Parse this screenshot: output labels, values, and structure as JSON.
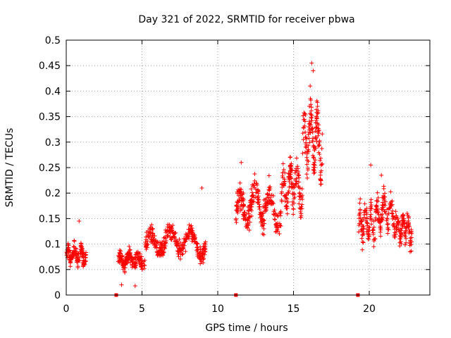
{
  "chart_data": {
    "type": "scatter",
    "title": "Day 321 of 2022, SRMTID for receiver pbwa",
    "xlabel": "GPS time / hours",
    "ylabel": "SRMTID / TECUs",
    "xlim": [
      0,
      24
    ],
    "ylim": [
      0,
      0.5
    ],
    "xticks": [
      0,
      5,
      10,
      15,
      20
    ],
    "yticks": [
      0,
      0.05,
      0.1,
      0.15,
      0.2,
      0.25,
      0.3,
      0.35,
      0.4,
      0.45,
      0.5
    ],
    "grid": true,
    "marker": "+",
    "color": "#ff0000",
    "zero_markers_x": [
      3.3,
      11.2,
      19.25
    ],
    "segments": [
      {
        "start": 0.0,
        "end": 1.3,
        "base": 0.072,
        "amp": 0.022,
        "noise": 0.02,
        "count": 130
      },
      {
        "start": 3.4,
        "end": 5.2,
        "base": 0.065,
        "amp": 0.015,
        "noise": 0.02,
        "count": 170
      },
      {
        "start": 5.2,
        "end": 9.2,
        "base": 0.095,
        "amp": 0.035,
        "noise": 0.025,
        "count": 320
      },
      {
        "start": 11.2,
        "end": 14.2,
        "base": 0.16,
        "amp": 0.05,
        "noise": 0.04,
        "count": 260
      },
      {
        "start": 14.2,
        "end": 15.6,
        "base": 0.2,
        "amp": 0.05,
        "noise": 0.045,
        "count": 140
      },
      {
        "start": 15.6,
        "end": 16.9,
        "base": 0.28,
        "amp": 0.08,
        "noise": 0.06,
        "count": 150
      },
      {
        "start": 19.3,
        "end": 20.4,
        "base": 0.13,
        "amp": 0.04,
        "noise": 0.04,
        "count": 90
      },
      {
        "start": 20.4,
        "end": 21.8,
        "base": 0.15,
        "amp": 0.04,
        "noise": 0.035,
        "count": 120
      },
      {
        "start": 21.8,
        "end": 22.8,
        "base": 0.12,
        "amp": 0.035,
        "noise": 0.035,
        "count": 100
      }
    ],
    "outliers": [
      {
        "x": 16.2,
        "y": 0.455
      },
      {
        "x": 16.3,
        "y": 0.44
      },
      {
        "x": 16.1,
        "y": 0.41
      },
      {
        "x": 20.1,
        "y": 0.255
      },
      {
        "x": 20.8,
        "y": 0.235
      },
      {
        "x": 11.55,
        "y": 0.26
      },
      {
        "x": 8.95,
        "y": 0.21
      },
      {
        "x": 0.85,
        "y": 0.145
      },
      {
        "x": 4.55,
        "y": 0.018
      },
      {
        "x": 3.65,
        "y": 0.02
      }
    ]
  }
}
